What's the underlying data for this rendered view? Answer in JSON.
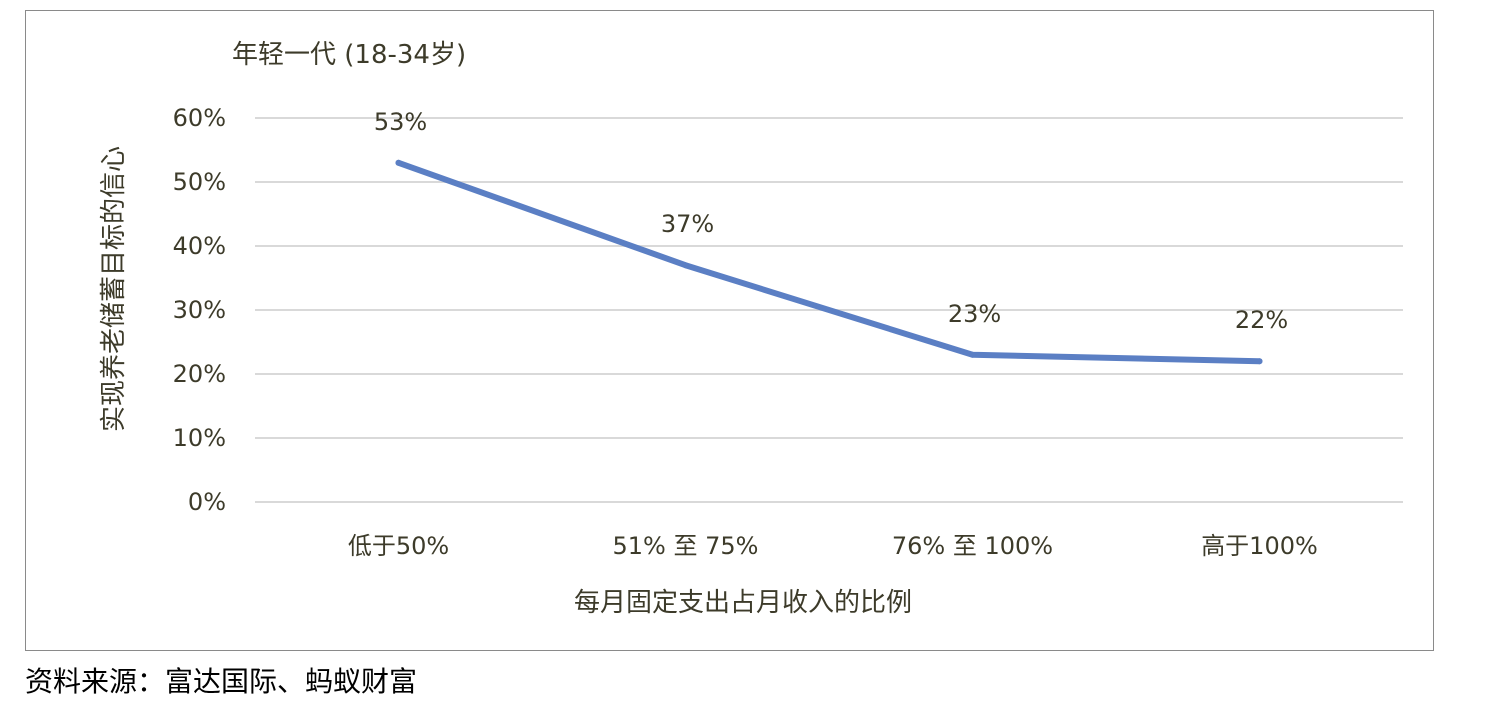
{
  "chart_data": {
    "type": "line",
    "title": "年轻一代 (18-34岁)",
    "xlabel": "每月固定支出占月收入的比例",
    "ylabel": "实现养老储蓄目标的信心",
    "categories": [
      "低于50%",
      "51% 至 75%",
      "76% 至 100%",
      "高于100%"
    ],
    "series": [
      {
        "values": [
          53,
          37,
          23,
          22
        ],
        "labels": [
          "53%",
          "37%",
          "23%",
          "22%"
        ]
      }
    ],
    "ylim": [
      0,
      60
    ],
    "yticks": [
      0,
      10,
      20,
      30,
      40,
      50,
      60
    ],
    "ytick_labels": [
      "0%",
      "10%",
      "20%",
      "30%",
      "40%",
      "50%",
      "60%"
    ],
    "grid": true,
    "line_color": "#5b7fc4"
  },
  "source_note": "资料来源：富达国际、蚂蚁财富"
}
